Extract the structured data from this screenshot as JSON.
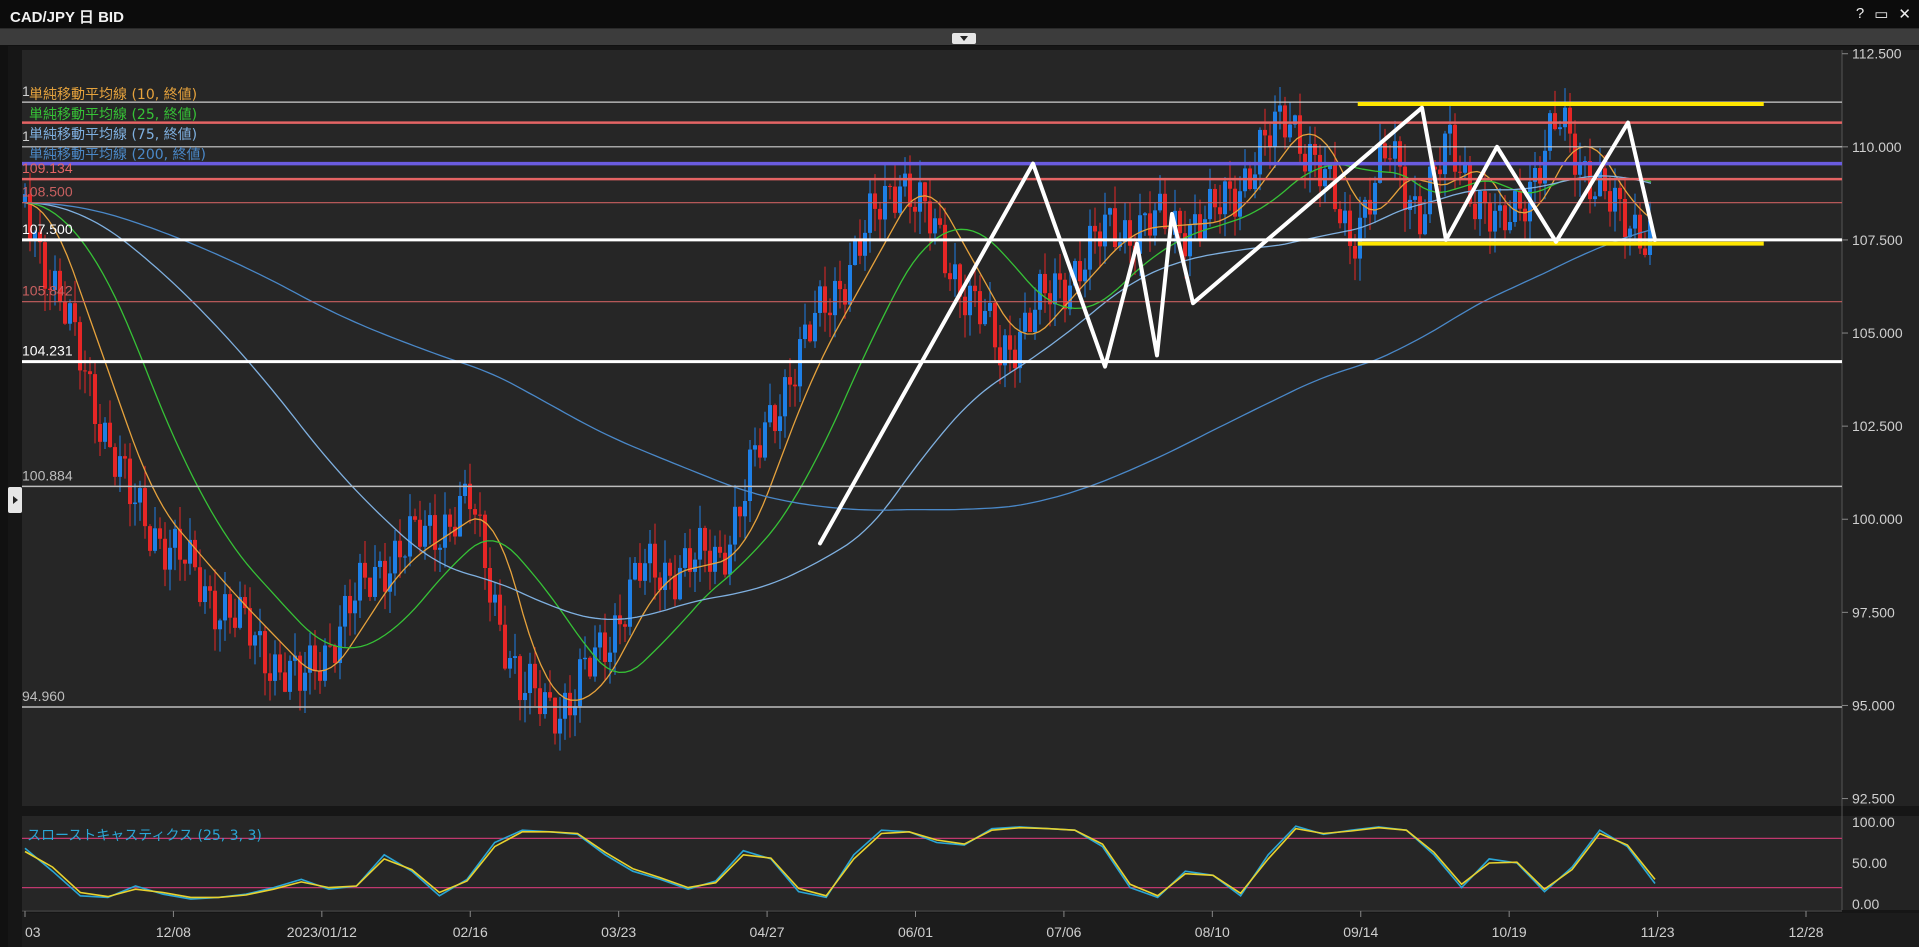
{
  "window": {
    "title": "CAD/JPY 日 BID",
    "buttons": [
      "?",
      "▭",
      "✕"
    ]
  },
  "chart_data": {
    "type": "candlestick",
    "title": "CAD/JPY 日 BID",
    "price_axis": {
      "ticks": [
        "112.500",
        "110.000",
        "107.500",
        "105.000",
        "102.500",
        "100.000",
        "97.500",
        "95.000",
        "92.500"
      ],
      "values": [
        112.5,
        110.0,
        107.5,
        105.0,
        102.5,
        100.0,
        97.5,
        95.0,
        92.5
      ],
      "ylim": [
        92.3,
        112.6
      ]
    },
    "date_axis": {
      "ticks": [
        "03",
        "12/08",
        "2023/01/12",
        "02/16",
        "03/23",
        "04/27",
        "06/01",
        "07/06",
        "08/10",
        "09/14",
        "10/19",
        "11/23",
        "12/28"
      ]
    },
    "legend": [
      {
        "label": "単純移動平均線 (10, 終値)",
        "color": "#e6a23c"
      },
      {
        "label": "単純移動平均線 (25, 終値)",
        "color": "#36c236"
      },
      {
        "label": "単純移動平均線 (75, 終値)",
        "color": "#7fb0e0"
      },
      {
        "label": "単純移動平均線 (200, 終値)",
        "color": "#4a88c8"
      }
    ],
    "horizontal_lines": [
      {
        "value": 111.2,
        "label": "1",
        "color": "#cfcfcf",
        "width": 1.2
      },
      {
        "value": 110.65,
        "label": "",
        "color": "#e46464",
        "width": 2.5
      },
      {
        "value": 110.0,
        "label": "1",
        "color": "#cfcfcf",
        "width": 1.2
      },
      {
        "value": 109.55,
        "label": "",
        "color": "#6a5ce0",
        "width": 3.5
      },
      {
        "value": 109.134,
        "label": "109.134",
        "color": "#e46464",
        "width": 2.5
      },
      {
        "value": 108.5,
        "label": "108.500",
        "color": "#c86060",
        "width": 1.2
      },
      {
        "value": 107.5,
        "label": "107.500",
        "color": "#ffffff",
        "width": 3
      },
      {
        "value": 105.842,
        "label": "105.842",
        "color": "#c86060",
        "width": 1.2
      },
      {
        "value": 104.231,
        "label": "104.231",
        "color": "#ffffff",
        "width": 3
      },
      {
        "value": 100.884,
        "label": "100.884",
        "color": "#bdbdbd",
        "width": 1.5
      },
      {
        "value": 94.96,
        "label": "94.960",
        "color": "#bdbdbd",
        "width": 1.5
      }
    ],
    "yellow_lines": [
      {
        "value": 111.15,
        "from_date": "09/14",
        "to_date": "12/28"
      },
      {
        "value": 107.4,
        "from_date": "09/14",
        "to_date": "12/28"
      }
    ],
    "zigzag_price_points": [
      99.35,
      109.55,
      104.1,
      107.4,
      104.4,
      108.2,
      105.8,
      111.05,
      107.5,
      110.0,
      107.45,
      110.65,
      107.5
    ],
    "stochastic": {
      "label": "スローストキャスティクス (25, 3, 3)",
      "ticks": [
        "100.00",
        "50.00",
        "0.00"
      ],
      "levels": [
        80,
        20
      ],
      "k_values": [
        68,
        40,
        10,
        8,
        22,
        12,
        6,
        8,
        12,
        20,
        30,
        18,
        22,
        60,
        40,
        10,
        30,
        75,
        90,
        88,
        85,
        60,
        40,
        30,
        18,
        28,
        65,
        55,
        15,
        8,
        60,
        90,
        88,
        75,
        72,
        92,
        94,
        92,
        90,
        70,
        20,
        8,
        40,
        35,
        10,
        60,
        95,
        85,
        90,
        94,
        90,
        60,
        20,
        55,
        50,
        15,
        45,
        90,
        70,
        25
      ],
      "d_values": [
        64,
        45,
        14,
        9,
        18,
        14,
        8,
        8,
        11,
        18,
        27,
        20,
        22,
        55,
        42,
        14,
        28,
        70,
        88,
        88,
        86,
        63,
        43,
        32,
        20,
        26,
        60,
        56,
        19,
        10,
        55,
        86,
        88,
        78,
        73,
        90,
        93,
        92,
        90,
        73,
        24,
        10,
        37,
        35,
        13,
        55,
        92,
        86,
        89,
        93,
        90,
        63,
        24,
        50,
        51,
        18,
        42,
        86,
        72,
        30
      ]
    }
  }
}
